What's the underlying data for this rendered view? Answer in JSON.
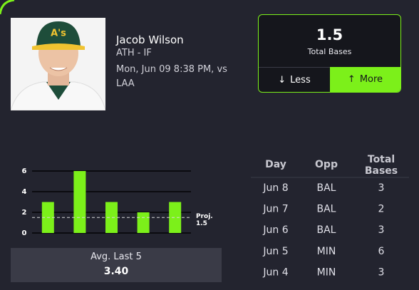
{
  "player": {
    "name": "Jacob Wilson",
    "team_position": "ATH - IF",
    "game": "Mon, Jun 09 8:38 PM, vs LAA"
  },
  "pick": {
    "line": "1.5",
    "stat": "Total Bases",
    "less": "Less",
    "more": "More"
  },
  "chart_data": {
    "type": "bar",
    "values": [
      3,
      6,
      3,
      2,
      3
    ],
    "color": "#7cf01a",
    "ylim": [
      0,
      6
    ],
    "yticks": [
      0,
      2,
      4,
      6
    ],
    "grid": true,
    "projection": 1.5,
    "projection_label": "Proj."
  },
  "average": {
    "label": "Avg. Last 5",
    "value": "3.40"
  },
  "table": {
    "header": [
      "Day",
      "Opp",
      "Total Bases"
    ],
    "rows": [
      [
        "Jun 8",
        "BAL",
        "3"
      ],
      [
        "Jun 7",
        "BAL",
        "2"
      ],
      [
        "Jun 6",
        "BAL",
        "3"
      ],
      [
        "Jun 5",
        "MIN",
        "6"
      ],
      [
        "Jun 4",
        "MIN",
        "3"
      ]
    ]
  }
}
